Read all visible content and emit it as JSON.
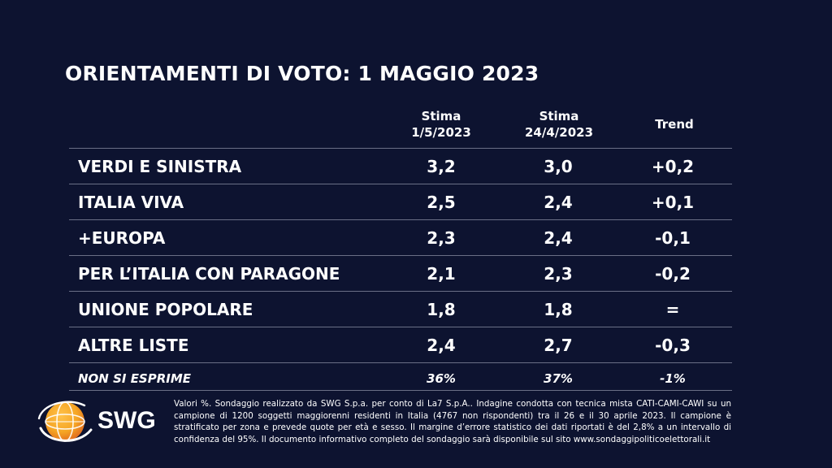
{
  "title": "ORIENTAMENTI DI VOTO: 1 MAGGIO 2023",
  "columns": {
    "c1": [
      "Stima",
      "1/5/2023"
    ],
    "c2": [
      "Stima",
      "24/4/2023"
    ],
    "c3": "Trend"
  },
  "rows": [
    {
      "name": "VERDI E SINISTRA",
      "v1": "3,2",
      "v2": "3,0",
      "trend": "+0,2"
    },
    {
      "name": "ITALIA VIVA",
      "v1": "2,5",
      "v2": "2,4",
      "trend": "+0,1"
    },
    {
      "name": "+EUROPA",
      "v1": "2,3",
      "v2": "2,4",
      "trend": "-0,1"
    },
    {
      "name": "PER L’ITALIA CON PARAGONE",
      "v1": "2,1",
      "v2": "2,3",
      "trend": "-0,2"
    },
    {
      "name": "UNIONE POPOLARE",
      "v1": "1,8",
      "v2": "1,8",
      "trend": "="
    },
    {
      "name": "ALTRE LISTE",
      "v1": "2,4",
      "v2": "2,7",
      "trend": "-0,3"
    },
    {
      "name": "NON SI ESPRIME",
      "v1": "36%",
      "v2": "37%",
      "trend": "-1%"
    }
  ],
  "logo": {
    "text": "SWG",
    "globe_color": "#f5a524",
    "globe_dark": "#e0681c"
  },
  "note": "Valori %. Sondaggio realizzato da SWG S.p.a. per conto di La7 S.p.A.. Indagine condotta con tecnica mista CATI-CAMI-CAWI su un campione di 1200 soggetti maggiorenni residenti in Italia (4767 non rispondenti) tra il 26 e il 30 aprile 2023. Il campione è stratificato per zona e prevede quote per età e sesso. Il margine d’errore statistico dei dati riportati è del 2,8% a un intervallo di confidenza del 95%. Il documento informativo completo del sondaggio sarà disponibile sul sito www.sondaggipoliticoelettorali.it",
  "colors": {
    "background": "#0d1330",
    "rule": "#6a6f86",
    "text": "#ffffff"
  }
}
